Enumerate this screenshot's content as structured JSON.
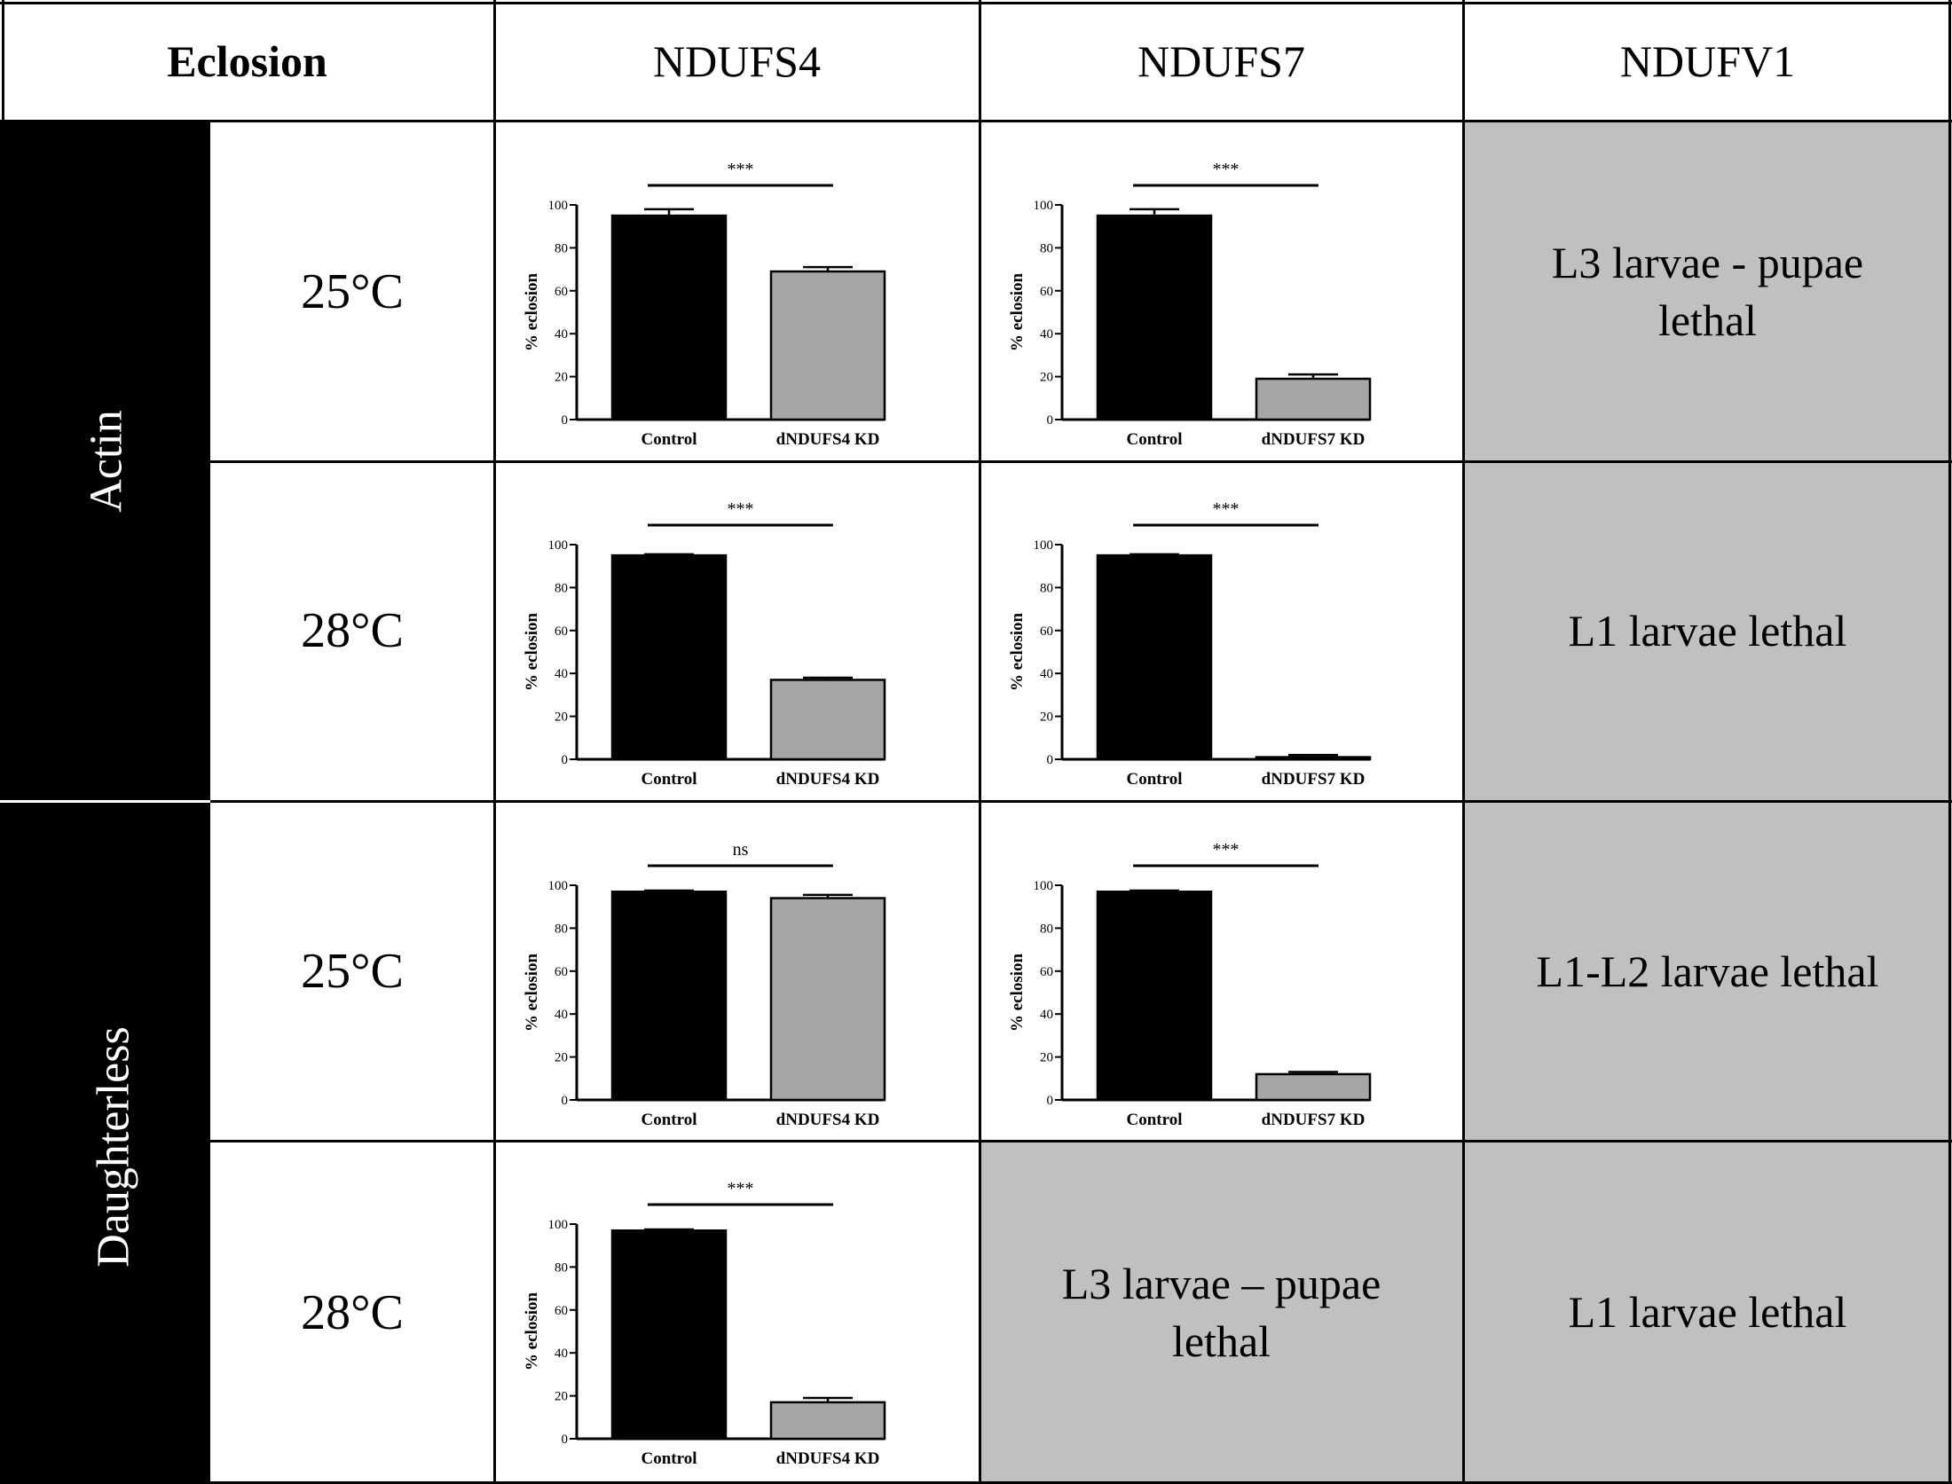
{
  "table": {
    "corner": "Eclosion",
    "columns": [
      "NDUFS4",
      "NDUFS7",
      "NDUFV1"
    ],
    "drivers": [
      "Actin",
      "Daughterless"
    ],
    "temperatures": [
      "25°C",
      "28°C",
      "25°C",
      "28°C"
    ],
    "text_cells": {
      "actin_25_ndufv1": "L3 larvae - pupae lethal",
      "actin_28_ndufv1": "L1 larvae lethal",
      "da_25_ndufv1": "L1-L2 larvae lethal",
      "da_28_ndufs7": "L3 larvae – pupae lethal",
      "da_28_ndufv1": "L1 larvae lethal"
    }
  },
  "colors": {
    "control": "#000000",
    "kd": "#a6a6a6",
    "lethal_cell": "#c0c0c0"
  },
  "chart_data": [
    {
      "id": "actin-25-ndufs4",
      "type": "bar",
      "categories": [
        "Control",
        "dNDUFS4 KD"
      ],
      "values": [
        95,
        69
      ],
      "errors": [
        3,
        2
      ],
      "ylabel": "% eclosion",
      "ylim": [
        0,
        100
      ],
      "yticks": [
        0,
        20,
        40,
        60,
        80,
        100
      ],
      "significance": "***"
    },
    {
      "id": "actin-25-ndufs7",
      "type": "bar",
      "categories": [
        "Control",
        "dNDUFS7 KD"
      ],
      "values": [
        95,
        19
      ],
      "errors": [
        3,
        2
      ],
      "ylabel": "% eclosion",
      "ylim": [
        0,
        100
      ],
      "yticks": [
        0,
        20,
        40,
        60,
        80,
        100
      ],
      "significance": "***"
    },
    {
      "id": "actin-28-ndufs4",
      "type": "bar",
      "categories": [
        "Control",
        "dNDUFS4 KD"
      ],
      "values": [
        95,
        37
      ],
      "errors": [
        0.5,
        1
      ],
      "ylabel": "% eclosion",
      "ylim": [
        0,
        100
      ],
      "yticks": [
        0,
        20,
        40,
        60,
        80,
        100
      ],
      "significance": "***"
    },
    {
      "id": "actin-28-ndufs7",
      "type": "bar",
      "categories": [
        "Control",
        "dNDUFS7 KD"
      ],
      "values": [
        95,
        1
      ],
      "errors": [
        0.5,
        1
      ],
      "ylabel": "% eclosion",
      "ylim": [
        0,
        100
      ],
      "yticks": [
        0,
        20,
        40,
        60,
        80,
        100
      ],
      "significance": "***"
    },
    {
      "id": "da-25-ndufs4",
      "type": "bar",
      "categories": [
        "Control",
        "dNDUFS4 KD"
      ],
      "values": [
        97,
        94
      ],
      "errors": [
        0.5,
        1.5
      ],
      "ylabel": "% eclosion",
      "ylim": [
        0,
        100
      ],
      "yticks": [
        0,
        20,
        40,
        60,
        80,
        100
      ],
      "significance": "ns"
    },
    {
      "id": "da-25-ndufs7",
      "type": "bar",
      "categories": [
        "Control",
        "dNDUFS7 KD"
      ],
      "values": [
        97,
        12
      ],
      "errors": [
        0.5,
        1
      ],
      "ylabel": "% eclosion",
      "ylim": [
        0,
        100
      ],
      "yticks": [
        0,
        20,
        40,
        60,
        80,
        100
      ],
      "significance": "***"
    },
    {
      "id": "da-28-ndufs4",
      "type": "bar",
      "categories": [
        "Control",
        "dNDUFS4 KD"
      ],
      "values": [
        97,
        17
      ],
      "errors": [
        0.5,
        2
      ],
      "ylabel": "% eclosion",
      "ylim": [
        0,
        100
      ],
      "yticks": [
        0,
        20,
        40,
        60,
        80,
        100
      ],
      "significance": "***"
    }
  ]
}
